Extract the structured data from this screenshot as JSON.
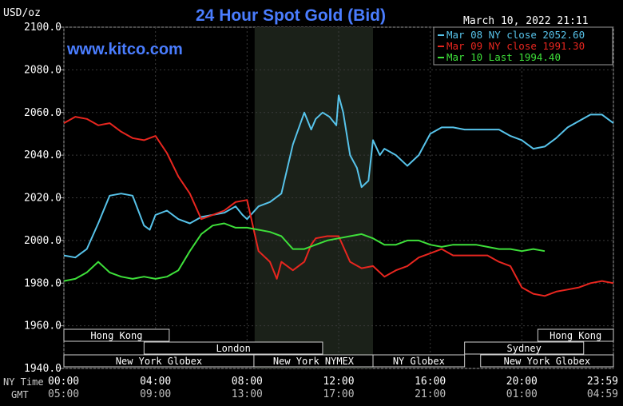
{
  "chart_data": {
    "type": "line",
    "title": "24 Hour Spot Gold (Bid)",
    "watermark": "www.kitco.com",
    "date_label": "March 10, 2022 21:11",
    "ylabel": "USD/oz",
    "ylim": [
      1940,
      2100
    ],
    "yticks": [
      "2100.0",
      "2080.0",
      "2060.0",
      "2040.0",
      "2020.0",
      "2000.0",
      "1980.0",
      "1960.0",
      "1940.0"
    ],
    "x_unit": "hours",
    "xlim": [
      0,
      24
    ],
    "xticks_ny": [
      "00:00",
      "04:00",
      "08:00",
      "12:00",
      "16:00",
      "20:00",
      "23:59"
    ],
    "xticks_gmt": [
      "05:00",
      "09:00",
      "13:00",
      "17:00",
      "21:00",
      "01:00",
      "04:59"
    ],
    "ny_time_label": "NY Time",
    "gmt_label": "GMT",
    "nymex_shading": [
      8.33,
      13.5
    ],
    "grid": true,
    "legend_position": "top-right",
    "series": [
      {
        "name": "Mar 08 NY close 2052.60",
        "color": "#57c3ea",
        "x": [
          0,
          0.5,
          1,
          1.5,
          2,
          2.5,
          3,
          3.5,
          3.75,
          4,
          4.5,
          5,
          5.5,
          6,
          6.5,
          7,
          7.5,
          7.8,
          8,
          8.5,
          9,
          9.5,
          10,
          10.5,
          10.8,
          11,
          11.3,
          11.6,
          11.9,
          12,
          12.2,
          12.5,
          12.8,
          13,
          13.3,
          13.5,
          13.8,
          14,
          14.5,
          15,
          15.5,
          16,
          16.5,
          17,
          17.5,
          18,
          18.5,
          19,
          19.5,
          20,
          20.5,
          21,
          21.5,
          22,
          22.5,
          23,
          23.5,
          24
        ],
        "y": [
          1993,
          1992,
          1996,
          2008,
          2021,
          2022,
          2021,
          2007,
          2005,
          2012,
          2014,
          2010,
          2008,
          2011,
          2012,
          2013,
          2016,
          2012,
          2010,
          2016,
          2018,
          2022,
          2045,
          2060,
          2052,
          2057,
          2060,
          2058,
          2054,
          2068,
          2060,
          2040,
          2034,
          2025,
          2028,
          2047,
          2040,
          2043,
          2040,
          2035,
          2040,
          2050,
          2053,
          2053,
          2052,
          2052,
          2052,
          2052,
          2049,
          2047,
          2043,
          2044,
          2048,
          2053,
          2056,
          2059,
          2059,
          2055
        ]
      },
      {
        "name": "Mar 09 NY close 1991.30",
        "color": "#e8261f",
        "x": [
          0,
          0.5,
          1,
          1.5,
          2,
          2.5,
          3,
          3.5,
          4,
          4.5,
          5,
          5.5,
          6,
          6.5,
          7,
          7.5,
          8,
          8.5,
          9,
          9.3,
          9.5,
          10,
          10.5,
          10.8,
          11,
          11.5,
          12,
          12.5,
          13,
          13.5,
          14,
          14.5,
          15,
          15.5,
          16,
          16.5,
          17,
          17.5,
          18,
          18.5,
          19,
          19.5,
          20,
          20.5,
          21,
          21.5,
          22,
          22.5,
          23,
          23.5,
          24
        ],
        "y": [
          2055,
          2058,
          2057,
          2054,
          2055,
          2051,
          2048,
          2047,
          2049,
          2041,
          2030,
          2022,
          2010,
          2012,
          2014,
          2018,
          2019,
          1995,
          1990,
          1982,
          1990,
          1986,
          1990,
          1998,
          2001,
          2002,
          2002,
          1990,
          1987,
          1988,
          1983,
          1986,
          1988,
          1992,
          1994,
          1996,
          1993,
          1993,
          1993,
          1993,
          1990,
          1988,
          1978,
          1975,
          1974,
          1976,
          1977,
          1978,
          1980,
          1981,
          1980
        ]
      },
      {
        "name": "Mar 10 Last 1994.40",
        "color": "#3ee03a",
        "x": [
          0,
          0.5,
          1,
          1.5,
          2,
          2.5,
          3,
          3.5,
          4,
          4.5,
          5,
          5.5,
          6,
          6.5,
          7,
          7.5,
          8,
          8.5,
          9,
          9.5,
          10,
          10.5,
          11,
          11.5,
          12,
          12.5,
          13,
          13.5,
          14,
          14.5,
          15,
          15.5,
          16,
          16.5,
          17,
          17.5,
          18,
          18.5,
          19,
          19.5,
          20,
          20.5,
          21
        ],
        "y": [
          1981,
          1982,
          1985,
          1990,
          1985,
          1983,
          1982,
          1983,
          1982,
          1983,
          1986,
          1995,
          2003,
          2007,
          2008,
          2006,
          2006,
          2005,
          2004,
          2002,
          1996,
          1996,
          1998,
          2000,
          2001,
          2002,
          2003,
          2001,
          1998,
          1998,
          2000,
          2000,
          1998,
          1997,
          1998,
          1998,
          1998,
          1997,
          1996,
          1996,
          1995,
          1996,
          1995
        ]
      }
    ],
    "sessions": [
      {
        "label": "Hong Kong",
        "row": 1,
        "start": 0,
        "end": 4.6
      },
      {
        "label": "Hong Kong",
        "row": 1,
        "start": 20.7,
        "end": 24
      },
      {
        "label": "London",
        "row": 2,
        "start": 3.5,
        "end": 11.3
      },
      {
        "label": "Sydney",
        "row": 2,
        "start": 17.5,
        "end": 22.7
      },
      {
        "label": "New York Globex",
        "row": 3,
        "start": 0,
        "end": 8.3
      },
      {
        "label": "New York NYMEX",
        "row": 3,
        "start": 8.3,
        "end": 13.5
      },
      {
        "label": "NY Globex",
        "row": 3,
        "start": 13.5,
        "end": 17.5
      },
      {
        "label": "New York Globex",
        "row": 3,
        "start": 18.2,
        "end": 24
      }
    ]
  }
}
